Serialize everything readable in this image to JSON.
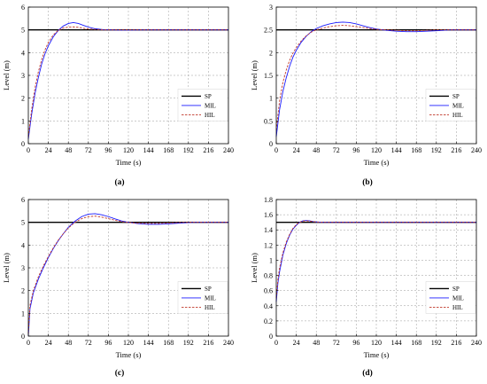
{
  "chart_data": [
    {
      "type": "line",
      "panel_label": "(a)",
      "xlabel": "Time (s)",
      "ylabel": "Level (m)",
      "xlim": [
        0,
        240
      ],
      "ylim": [
        0,
        6
      ],
      "xticks": [
        0,
        24,
        48,
        72,
        96,
        120,
        144,
        168,
        192,
        216,
        240
      ],
      "yticks": [
        0,
        1,
        2,
        3,
        4,
        5,
        6
      ],
      "grid": true,
      "legend": "right",
      "series": [
        {
          "name": "SP",
          "color": "#000000",
          "style": "solid",
          "x": [
            0,
            240
          ],
          "y": [
            5,
            5
          ]
        },
        {
          "name": "MIL",
          "color": "#1a1aff",
          "style": "solid",
          "x": [
            0,
            4,
            8,
            12,
            16,
            20,
            24,
            30,
            36,
            42,
            48,
            54,
            60,
            66,
            72,
            80,
            90,
            100,
            110,
            120,
            140,
            160,
            180,
            200,
            220,
            240
          ],
          "y": [
            0.2,
            1.3,
            2.2,
            2.9,
            3.5,
            3.95,
            4.3,
            4.7,
            4.98,
            5.17,
            5.28,
            5.32,
            5.28,
            5.2,
            5.12,
            5.05,
            5.01,
            5.0,
            4.99,
            4.99,
            5.0,
            5.0,
            5.0,
            5.0,
            5.0,
            5.0
          ]
        },
        {
          "name": "HIL",
          "color": "#c0392b",
          "style": "dashed",
          "x": [
            0,
            4,
            8,
            12,
            16,
            20,
            24,
            30,
            36,
            42,
            48,
            54,
            60,
            66,
            72,
            80,
            90,
            100,
            110,
            120,
            140,
            160,
            180,
            200,
            220,
            240
          ],
          "y": [
            0.3,
            1.5,
            2.45,
            3.15,
            3.7,
            4.12,
            4.45,
            4.78,
            4.98,
            5.08,
            5.12,
            5.13,
            5.11,
            5.07,
            5.04,
            5.02,
            5.0,
            5.0,
            5.0,
            5.0,
            5.0,
            5.0,
            5.0,
            5.0,
            5.0,
            5.0
          ]
        }
      ]
    },
    {
      "type": "line",
      "panel_label": "(b)",
      "xlabel": "Time (s)",
      "ylabel": "Level (m)",
      "xlim": [
        0,
        240
      ],
      "ylim": [
        0,
        3
      ],
      "xticks": [
        0,
        24,
        48,
        72,
        96,
        120,
        144,
        168,
        192,
        216,
        240
      ],
      "yticks": [
        0,
        0.5,
        1,
        1.5,
        2,
        2.5,
        3
      ],
      "grid": true,
      "legend": "right",
      "series": [
        {
          "name": "SP",
          "color": "#000000",
          "style": "solid",
          "x": [
            0,
            240
          ],
          "y": [
            2.5,
            2.5
          ]
        },
        {
          "name": "MIL",
          "color": "#1a1aff",
          "style": "solid",
          "x": [
            0,
            4,
            8,
            12,
            16,
            20,
            24,
            30,
            36,
            42,
            48,
            56,
            64,
            72,
            80,
            88,
            96,
            104,
            112,
            120,
            132,
            144,
            156,
            168,
            180,
            192,
            210,
            240
          ],
          "y": [
            0.15,
            0.75,
            1.15,
            1.45,
            1.7,
            1.9,
            2.05,
            2.23,
            2.36,
            2.46,
            2.53,
            2.59,
            2.63,
            2.66,
            2.67,
            2.66,
            2.63,
            2.59,
            2.55,
            2.52,
            2.49,
            2.47,
            2.46,
            2.46,
            2.47,
            2.48,
            2.5,
            2.5
          ]
        },
        {
          "name": "HIL",
          "color": "#c0392b",
          "style": "dashed",
          "x": [
            0,
            4,
            8,
            12,
            16,
            20,
            24,
            30,
            36,
            42,
            48,
            56,
            64,
            72,
            80,
            88,
            96,
            104,
            112,
            120,
            132,
            144,
            156,
            168,
            180,
            192,
            210,
            240
          ],
          "y": [
            0.3,
            0.95,
            1.35,
            1.62,
            1.83,
            1.99,
            2.11,
            2.26,
            2.37,
            2.45,
            2.5,
            2.54,
            2.57,
            2.59,
            2.6,
            2.59,
            2.57,
            2.55,
            2.53,
            2.51,
            2.5,
            2.49,
            2.48,
            2.48,
            2.49,
            2.5,
            2.5,
            2.5
          ]
        }
      ]
    },
    {
      "type": "line",
      "panel_label": "(c)",
      "xlabel": "Time (s)",
      "ylabel": "Level (m)",
      "xlim": [
        0,
        240
      ],
      "ylim": [
        0,
        6
      ],
      "xticks": [
        0,
        24,
        48,
        72,
        96,
        120,
        144,
        168,
        192,
        216,
        240
      ],
      "yticks": [
        0,
        1,
        2,
        3,
        4,
        5,
        6
      ],
      "grid": true,
      "legend": "right",
      "series": [
        {
          "name": "SP",
          "color": "#000000",
          "style": "solid",
          "x": [
            0,
            240
          ],
          "y": [
            5,
            5
          ]
        },
        {
          "name": "MIL",
          "color": "#1a1aff",
          "style": "solid",
          "x": [
            0,
            2,
            6,
            12,
            18,
            24,
            30,
            36,
            42,
            48,
            56,
            64,
            72,
            80,
            88,
            96,
            104,
            112,
            120,
            132,
            144,
            156,
            168,
            180,
            200,
            220,
            240
          ],
          "y": [
            0.0,
            1.2,
            1.9,
            2.5,
            3.0,
            3.45,
            3.85,
            4.2,
            4.5,
            4.78,
            5.05,
            5.25,
            5.36,
            5.38,
            5.33,
            5.25,
            5.15,
            5.06,
            5.0,
            4.94,
            4.91,
            4.91,
            4.93,
            4.96,
            5.0,
            5.0,
            5.0
          ]
        },
        {
          "name": "HIL",
          "color": "#c0392b",
          "style": "dashed",
          "x": [
            0,
            2,
            6,
            12,
            18,
            24,
            30,
            36,
            42,
            48,
            56,
            64,
            72,
            80,
            88,
            96,
            104,
            112,
            120,
            132,
            144,
            156,
            168,
            180,
            200,
            220,
            240
          ],
          "y": [
            0.1,
            1.35,
            2.0,
            2.6,
            3.08,
            3.5,
            3.88,
            4.22,
            4.5,
            4.75,
            5.0,
            5.16,
            5.25,
            5.27,
            5.23,
            5.16,
            5.09,
            5.03,
            4.99,
            4.96,
            4.95,
            4.95,
            4.97,
            4.99,
            5.0,
            5.0,
            5.0
          ]
        }
      ]
    },
    {
      "type": "line",
      "panel_label": "(d)",
      "xlabel": "Time (s)",
      "ylabel": "Level (m)",
      "xlim": [
        0,
        240
      ],
      "ylim": [
        0,
        1.8
      ],
      "xticks": [
        0,
        24,
        48,
        72,
        96,
        120,
        144,
        168,
        192,
        216,
        240
      ],
      "yticks": [
        0,
        0.2,
        0.4,
        0.6,
        0.8,
        1.0,
        1.2,
        1.4,
        1.6,
        1.8
      ],
      "grid": true,
      "legend": "right",
      "series": [
        {
          "name": "SP",
          "color": "#000000",
          "style": "solid",
          "x": [
            0,
            240
          ],
          "y": [
            1.5,
            1.5
          ]
        },
        {
          "name": "MIL",
          "color": "#1a1aff",
          "style": "solid",
          "x": [
            0,
            2,
            4,
            8,
            12,
            16,
            20,
            24,
            28,
            32,
            36,
            40,
            44,
            48,
            56,
            64,
            80,
            100,
            240
          ],
          "y": [
            0.45,
            0.7,
            0.85,
            1.07,
            1.22,
            1.33,
            1.41,
            1.46,
            1.5,
            1.52,
            1.525,
            1.52,
            1.51,
            1.505,
            1.5,
            1.5,
            1.5,
            1.5,
            1.5
          ]
        },
        {
          "name": "HIL",
          "color": "#c0392b",
          "style": "dashed",
          "x": [
            0,
            2,
            4,
            8,
            12,
            16,
            20,
            24,
            28,
            32,
            36,
            40,
            44,
            48,
            56,
            64,
            80,
            100,
            240
          ],
          "y": [
            0.5,
            0.75,
            0.9,
            1.1,
            1.24,
            1.34,
            1.42,
            1.47,
            1.5,
            1.515,
            1.52,
            1.515,
            1.51,
            1.505,
            1.5,
            1.5,
            1.5,
            1.5,
            1.5
          ]
        }
      ]
    }
  ]
}
